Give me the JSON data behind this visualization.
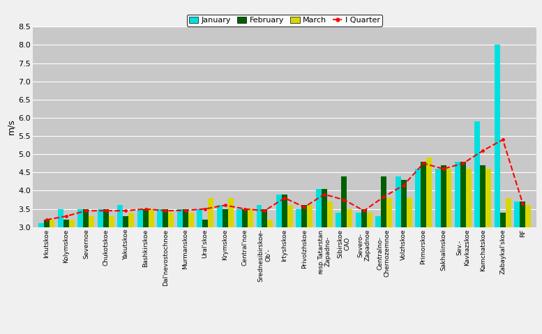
{
  "categories": [
    "Irkutskoe",
    "Kolymskoe",
    "Severnoe",
    "Chukotskoe",
    "Yakutskoe",
    "Bashkirskoe",
    "Dal'nevostochnoe",
    "Murmanskoe",
    "Ural'skoe",
    "Krymskoe",
    "Central'noe",
    "Srednesibirskoe-\nOb'-",
    "Irtyshskoe",
    "Privolzhskoe",
    "resp.Tatarstan\nZapadno-",
    "Sibirskoe\nCAO",
    "Severo-\nZapadnoe",
    "Centralno-\nChernozemnoe",
    "Volzhskoe",
    "Primorskoe",
    "Sakhalinskoe",
    "Sev.-\nKavkazskoe",
    "Kamchatskoe",
    "Zabaykal'skoe",
    "RF"
  ],
  "january": [
    3.1,
    3.5,
    3.5,
    3.5,
    3.6,
    3.5,
    3.5,
    3.5,
    3.5,
    3.6,
    3.5,
    3.6,
    3.9,
    3.5,
    4.05,
    3.4,
    3.4,
    3.3,
    4.4,
    4.6,
    4.6,
    4.8,
    5.9,
    8.0,
    3.7
  ],
  "february": [
    3.2,
    3.2,
    3.5,
    3.5,
    3.3,
    3.5,
    3.5,
    3.5,
    3.2,
    3.5,
    3.5,
    3.5,
    3.9,
    3.6,
    4.05,
    4.4,
    3.5,
    4.4,
    4.3,
    4.8,
    4.7,
    4.8,
    4.7,
    3.4,
    3.7
  ],
  "march": [
    3.2,
    3.2,
    3.3,
    3.3,
    3.4,
    3.5,
    3.4,
    3.4,
    3.8,
    3.8,
    3.5,
    3.2,
    3.6,
    3.6,
    3.7,
    3.5,
    3.4,
    3.8,
    3.8,
    4.9,
    4.6,
    4.6,
    4.6,
    3.8,
    3.6
  ],
  "quarter": [
    3.2,
    3.3,
    3.45,
    3.45,
    3.45,
    3.5,
    3.45,
    3.46,
    3.5,
    3.6,
    3.5,
    3.45,
    3.8,
    3.55,
    3.9,
    3.75,
    3.45,
    3.83,
    4.15,
    4.75,
    4.6,
    4.75,
    5.1,
    5.4,
    3.65
  ],
  "bar_color_jan": "#00e0e0",
  "bar_color_feb": "#006000",
  "bar_color_mar": "#d8d800",
  "line_color_quarter": "#ff0000",
  "background_color": "#c8c8c8",
  "ylabel": "m/s",
  "ylim_min": 3.0,
  "ylim_max": 8.5,
  "yticks": [
    3.0,
    3.5,
    4.0,
    4.5,
    5.0,
    5.5,
    6.0,
    6.5,
    7.0,
    7.5,
    8.0,
    8.5
  ],
  "bar_width": 0.28,
  "legend_labels": [
    "January",
    "February",
    "March",
    "I Quarter"
  ]
}
